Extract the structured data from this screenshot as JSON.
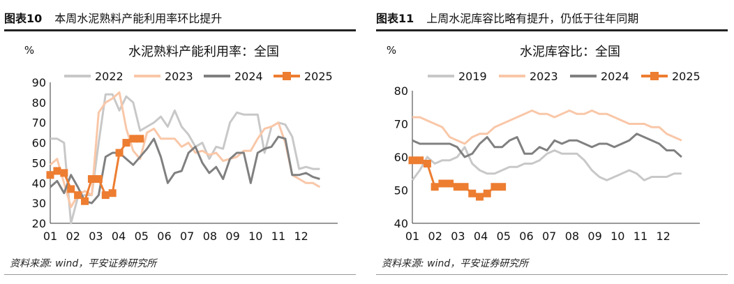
{
  "chart_data": [
    {
      "type": "line",
      "figure_label": "图表10",
      "header_title": "本周水泥熟料产能利用率环比提升",
      "title": "水泥熟料产能利用率：全国",
      "unit": "%",
      "ylim": [
        20,
        90
      ],
      "yticks": [
        20,
        30,
        40,
        50,
        60,
        70,
        80,
        90
      ],
      "x_tick_labels": [
        "01",
        "02",
        "03",
        "04",
        "05",
        "06",
        "07",
        "08",
        "09",
        "10",
        "11",
        "12"
      ],
      "source": "资料来源: wind，平安证券研究所",
      "series": [
        {
          "name": "2022",
          "color": "#c8c8c8",
          "values": [
            62,
            62,
            60,
            20,
            33,
            34,
            34,
            60,
            84,
            84,
            76,
            83,
            80,
            66,
            68,
            70,
            73,
            68,
            76,
            68,
            64,
            58,
            60,
            52,
            58,
            57,
            70,
            75,
            74,
            74,
            74,
            55,
            68,
            70,
            69,
            63,
            47,
            48,
            47,
            47
          ],
          "markers": false
        },
        {
          "name": "2023",
          "color": "#f9c7a8",
          "values": [
            49,
            52,
            40,
            28,
            34,
            36,
            34,
            75,
            80,
            82,
            85,
            67,
            56,
            52,
            65,
            67,
            62,
            62,
            62,
            58,
            60,
            55,
            56,
            54,
            55,
            51,
            52,
            53,
            56,
            56,
            62,
            67,
            68,
            70,
            60,
            44,
            42,
            40,
            40,
            38
          ],
          "markers": false
        },
        {
          "name": "2024",
          "color": "#808080",
          "values": [
            38,
            41,
            35,
            44,
            38,
            31,
            30,
            34,
            53,
            55,
            55,
            52,
            49,
            53,
            57,
            62,
            53,
            40,
            45,
            46,
            55,
            58,
            50,
            45,
            48,
            42,
            52,
            55,
            55,
            40,
            55,
            57,
            58,
            63,
            62,
            44,
            44,
            45,
            43,
            42
          ],
          "markers": false
        },
        {
          "name": "2025",
          "color": "#ed7d31",
          "values": [
            44,
            46,
            45,
            37,
            34,
            31,
            42,
            42,
            34,
            35,
            55,
            60,
            62,
            62
          ],
          "markers": true
        }
      ]
    },
    {
      "type": "line",
      "figure_label": "图表11",
      "header_title": "上周水泥库容比略有提升，仍低于往年同期",
      "title": "水泥库容比：全国",
      "unit": "%",
      "ylim": [
        40,
        80
      ],
      "yticks": [
        40,
        50,
        60,
        70,
        80
      ],
      "x_tick_labels": [
        "01",
        "02",
        "03",
        "04",
        "05",
        "06",
        "07",
        "08",
        "09",
        "10",
        "11",
        "12"
      ],
      "source": "资料来源: wind，平安证券研究所",
      "series": [
        {
          "name": "2019",
          "color": "#c8c8c8",
          "values": [
            53,
            56,
            60,
            58,
            59,
            59,
            60,
            63,
            58,
            56,
            55,
            55,
            56,
            57,
            57,
            58,
            58,
            59,
            61,
            62,
            61,
            61,
            61,
            59,
            56,
            54,
            53,
            54,
            55,
            56,
            55,
            53,
            54,
            54,
            54,
            55,
            55
          ],
          "markers": false
        },
        {
          "name": "2023",
          "color": "#f9c7a8",
          "values": [
            72,
            72,
            71,
            70,
            69,
            66,
            65,
            64,
            66,
            67,
            67,
            69,
            70,
            71,
            72,
            73,
            74,
            73,
            73,
            72,
            73,
            74,
            73,
            73,
            74,
            73,
            73,
            72,
            71,
            70,
            70,
            70,
            69,
            69,
            67,
            66,
            65
          ],
          "markers": false
        },
        {
          "name": "2024",
          "color": "#808080",
          "values": [
            65,
            64,
            64,
            64,
            64,
            64,
            63,
            60,
            61,
            64,
            66,
            63,
            63,
            65,
            66,
            61,
            61,
            63,
            62,
            65,
            64,
            65,
            65,
            64,
            63,
            64,
            64,
            63,
            64,
            65,
            67,
            66,
            65,
            64,
            62,
            62,
            60
          ],
          "markers": false
        },
        {
          "name": "2025",
          "color": "#ed7d31",
          "values": [
            59,
            59,
            58,
            51,
            52,
            52,
            51,
            51,
            49,
            48,
            49,
            51,
            51
          ],
          "markers": true
        }
      ]
    }
  ]
}
